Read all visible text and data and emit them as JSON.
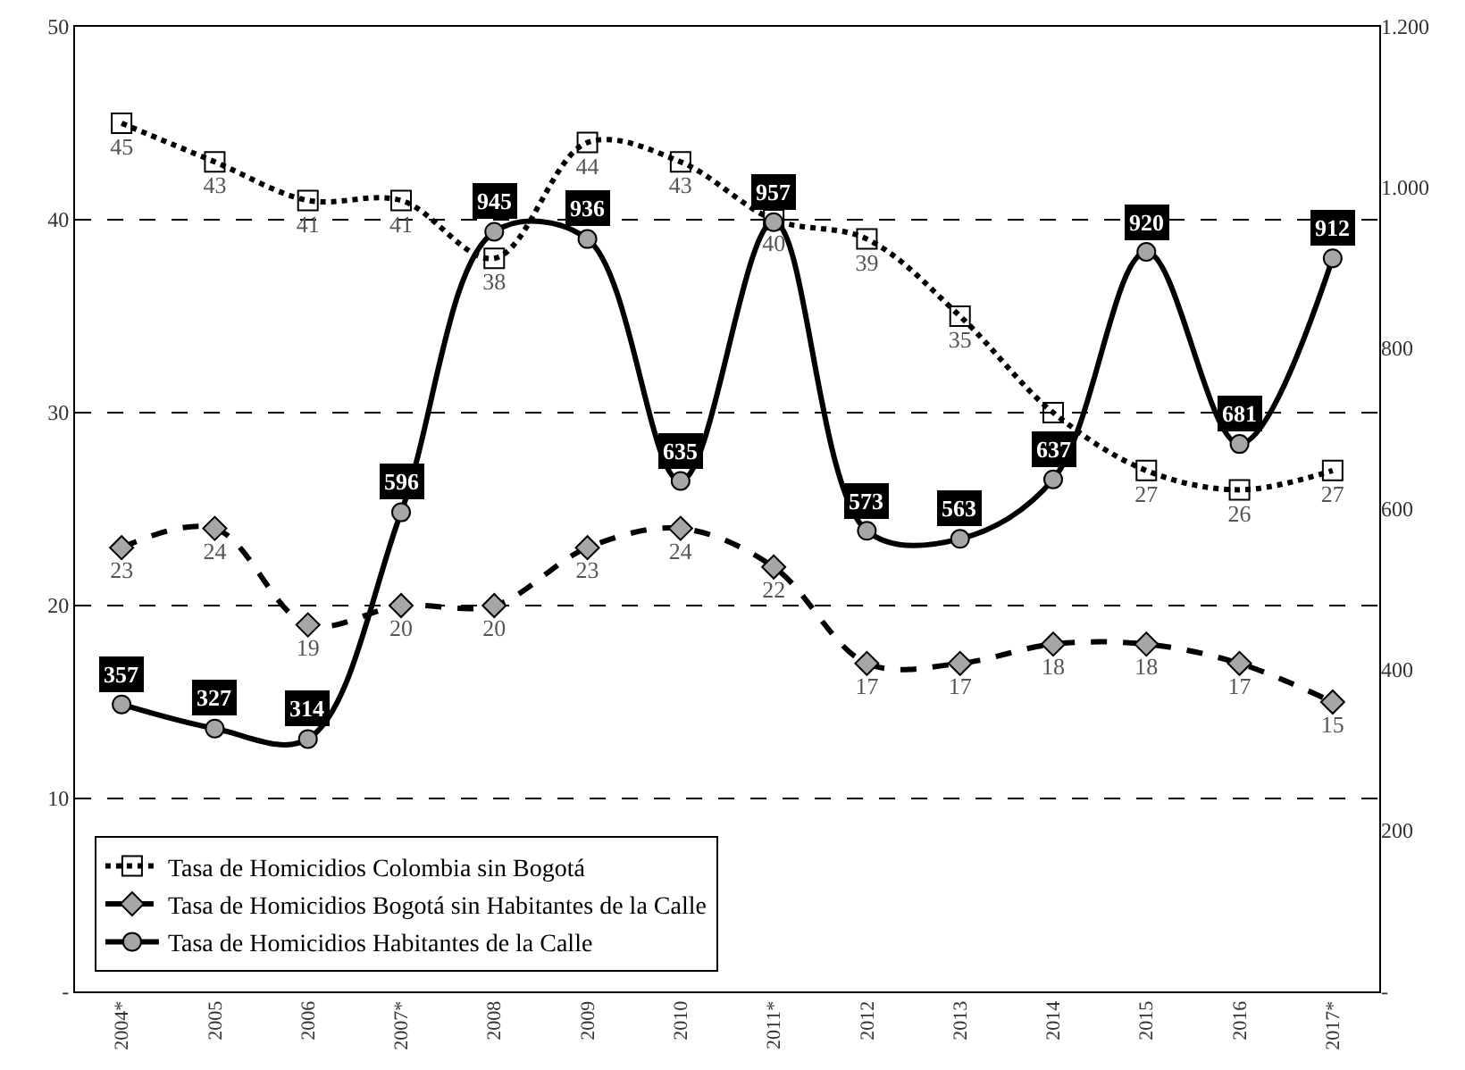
{
  "chart_data": {
    "type": "line",
    "categories": [
      "2004*",
      "2005",
      "2006",
      "2007*",
      "2008",
      "2009",
      "2010",
      "2011*",
      "2012",
      "2013",
      "2014",
      "2015",
      "2016",
      "2017*"
    ],
    "series": [
      {
        "name": "Tasa de Homicidios Colombia sin Bogotá",
        "color": "#000000",
        "marker": "square",
        "line_style": "dotted",
        "values": [
          45,
          43,
          41,
          41,
          38,
          44,
          43,
          40,
          39,
          35,
          30,
          27,
          26,
          27
        ],
        "value_labels": [
          "45",
          "43",
          "41",
          "41",
          "38",
          "44",
          "43",
          "40",
          "39",
          "35",
          null,
          "27",
          "26",
          "27"
        ]
      },
      {
        "name": "Tasa de Homicidios Bogotá sin Habitantes de la Calle",
        "color": "#000000",
        "marker": "diamond",
        "line_style": "dashed",
        "values": [
          23,
          24,
          19,
          20,
          20,
          23,
          24,
          22,
          17,
          17,
          18,
          18,
          17,
          15
        ],
        "value_labels": [
          "23",
          "24",
          "19",
          "20",
          "20",
          "23",
          "24",
          "22",
          "17",
          "17",
          "18",
          "18",
          "17",
          "15"
        ]
      },
      {
        "name": "Tasa de Homicidios Habitantes de la Calle",
        "color": "#000000",
        "marker": "circle",
        "line_style": "solid",
        "axis": "y2",
        "values": [
          357,
          327,
          314,
          596,
          945,
          936,
          635,
          957,
          573,
          563,
          637,
          920,
          681,
          912
        ],
        "value_labels": [
          "357",
          "327",
          "314",
          "596",
          "945",
          "936",
          "635",
          "957",
          "573",
          "563",
          "637",
          "920",
          "681",
          "912"
        ]
      }
    ],
    "ylim": [
      0,
      50
    ],
    "yticks": [
      {
        "value": 0,
        "label": "-"
      },
      10,
      20,
      30,
      40,
      50
    ],
    "y2lim": [
      0,
      1200
    ],
    "y2ticks": [
      {
        "value": 0,
        "label": "-"
      },
      200,
      400,
      600,
      800,
      {
        "value": 1000,
        "label": "1.000"
      },
      {
        "value": 1200,
        "label": "1.200"
      }
    ],
    "grid": "y",
    "legend": "bottom left"
  }
}
